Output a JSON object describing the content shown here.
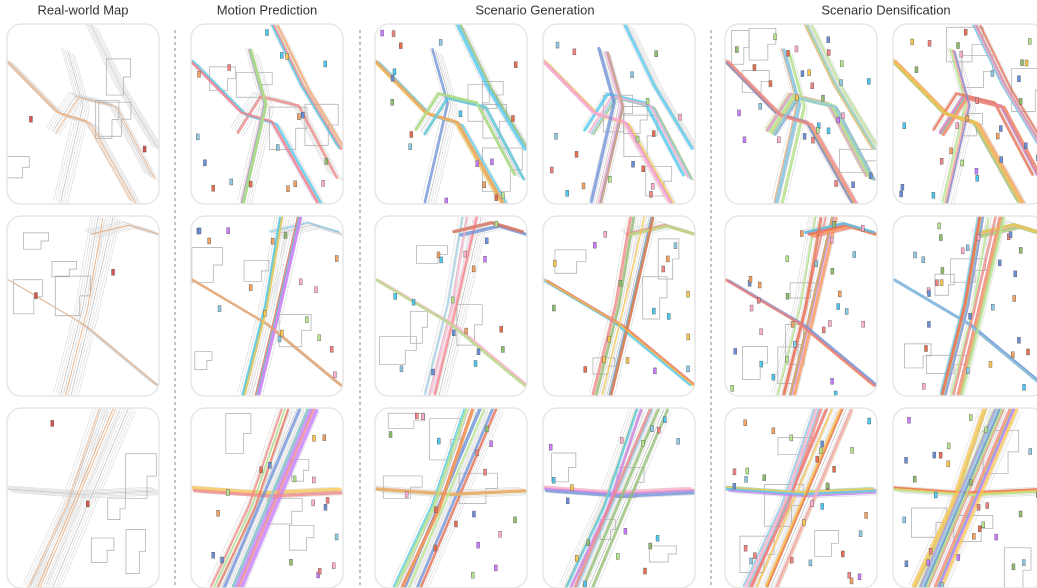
{
  "headers": [
    "Real-world Map",
    "Motion Prediction",
    "Scenario Generation",
    "Scenario Densification"
  ]
}
